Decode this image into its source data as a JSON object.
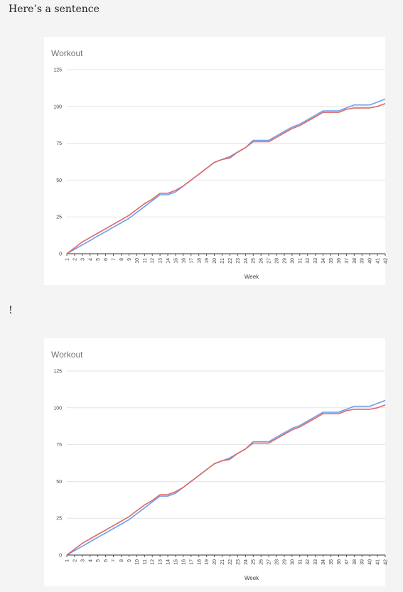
{
  "sentence": "Here’s a sentence",
  "exclamation": "!",
  "colors": {
    "series_a": "#6d9eeb",
    "series_b": "#e06666",
    "grid": "#e3e3e3",
    "axis": "#333333",
    "text": "#444444"
  },
  "chart_data": [
    {
      "type": "line",
      "title": "Workout",
      "xlabel": "Week",
      "ylabel": "",
      "ylim": [
        0,
        125
      ],
      "yticks": [
        0,
        25,
        50,
        75,
        100,
        125
      ],
      "grid": true,
      "legend": "none",
      "x": [
        1,
        2,
        3,
        4,
        5,
        6,
        7,
        8,
        9,
        10,
        11,
        12,
        13,
        14,
        15,
        16,
        17,
        18,
        19,
        20,
        21,
        22,
        23,
        24,
        25,
        26,
        27,
        28,
        29,
        30,
        31,
        32,
        33,
        34,
        35,
        36,
        37,
        38,
        39,
        40,
        41,
        42
      ],
      "series": [
        {
          "color": "#6d9eeb",
          "values": [
            0,
            3,
            6,
            9,
            12,
            15,
            18,
            21,
            24,
            28,
            32,
            36,
            40,
            40,
            42,
            46,
            50,
            54,
            58,
            62,
            64,
            66,
            69,
            72,
            77,
            77,
            77,
            80,
            83,
            86,
            88,
            91,
            94,
            97,
            97,
            97,
            99,
            101,
            101,
            101,
            103,
            105
          ]
        },
        {
          "color": "#e06666",
          "values": [
            0,
            4,
            8,
            11,
            14,
            17,
            20,
            23,
            26,
            30,
            34,
            37,
            41,
            41,
            43,
            46,
            50,
            54,
            58,
            62,
            64,
            65,
            69,
            72,
            76,
            76,
            76,
            79,
            82,
            85,
            87,
            90,
            93,
            96,
            96,
            96,
            98,
            99,
            99,
            99,
            100,
            102
          ]
        }
      ]
    },
    {
      "type": "line",
      "title": "Workout",
      "xlabel": "Week",
      "ylabel": "",
      "ylim": [
        0,
        125
      ],
      "yticks": [
        0,
        25,
        50,
        75,
        100,
        125
      ],
      "grid": true,
      "legend": "none",
      "x": [
        1,
        2,
        3,
        4,
        5,
        6,
        7,
        8,
        9,
        10,
        11,
        12,
        13,
        14,
        15,
        16,
        17,
        18,
        19,
        20,
        21,
        22,
        23,
        24,
        25,
        26,
        27,
        28,
        29,
        30,
        31,
        32,
        33,
        34,
        35,
        36,
        37,
        38,
        39,
        40,
        41,
        42
      ],
      "series": [
        {
          "color": "#6d9eeb",
          "values": [
            0,
            3,
            6,
            9,
            12,
            15,
            18,
            21,
            24,
            28,
            32,
            36,
            40,
            40,
            42,
            46,
            50,
            54,
            58,
            62,
            64,
            66,
            69,
            72,
            77,
            77,
            77,
            80,
            83,
            86,
            88,
            91,
            94,
            97,
            97,
            97,
            99,
            101,
            101,
            101,
            103,
            105
          ]
        },
        {
          "color": "#e06666",
          "values": [
            0,
            4,
            8,
            11,
            14,
            17,
            20,
            23,
            26,
            30,
            34,
            37,
            41,
            41,
            43,
            46,
            50,
            54,
            58,
            62,
            64,
            65,
            69,
            72,
            76,
            76,
            76,
            79,
            82,
            85,
            87,
            90,
            93,
            96,
            96,
            96,
            98,
            99,
            99,
            99,
            100,
            102
          ]
        }
      ]
    }
  ]
}
